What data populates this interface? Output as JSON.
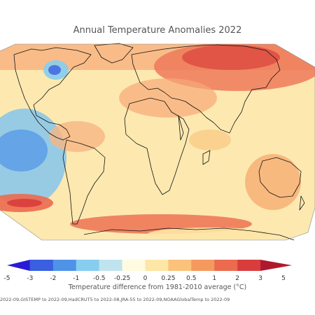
{
  "title": "Annual Temperature Anomalies 2022",
  "legend": {
    "caption": "Temperature difference from 1981-2010 average (°C)",
    "ticks": [
      "-5",
      "-3",
      "-2",
      "-1",
      "-0.5",
      "-0.25",
      "0",
      "0.25",
      "0.5",
      "1",
      "2",
      "3",
      "5"
    ],
    "colors": [
      "#2a1bd6",
      "#3a5fe0",
      "#4f93e8",
      "#86cdf0",
      "#bfe4ee",
      "#fffbe0",
      "#fde6a6",
      "#fac27a",
      "#f59a5e",
      "#ec6a4e",
      "#d93c3c",
      "#b0182e"
    ]
  },
  "credit": "2022-09,GISTEMP to 2022-09,HadCRUT5 to 2022-08,JRA-55 to 2022-09,NOAAGlobalTemp to 2022-09",
  "colors": {
    "land_outline": "#111111",
    "base_fill": "#fde9b0"
  }
}
